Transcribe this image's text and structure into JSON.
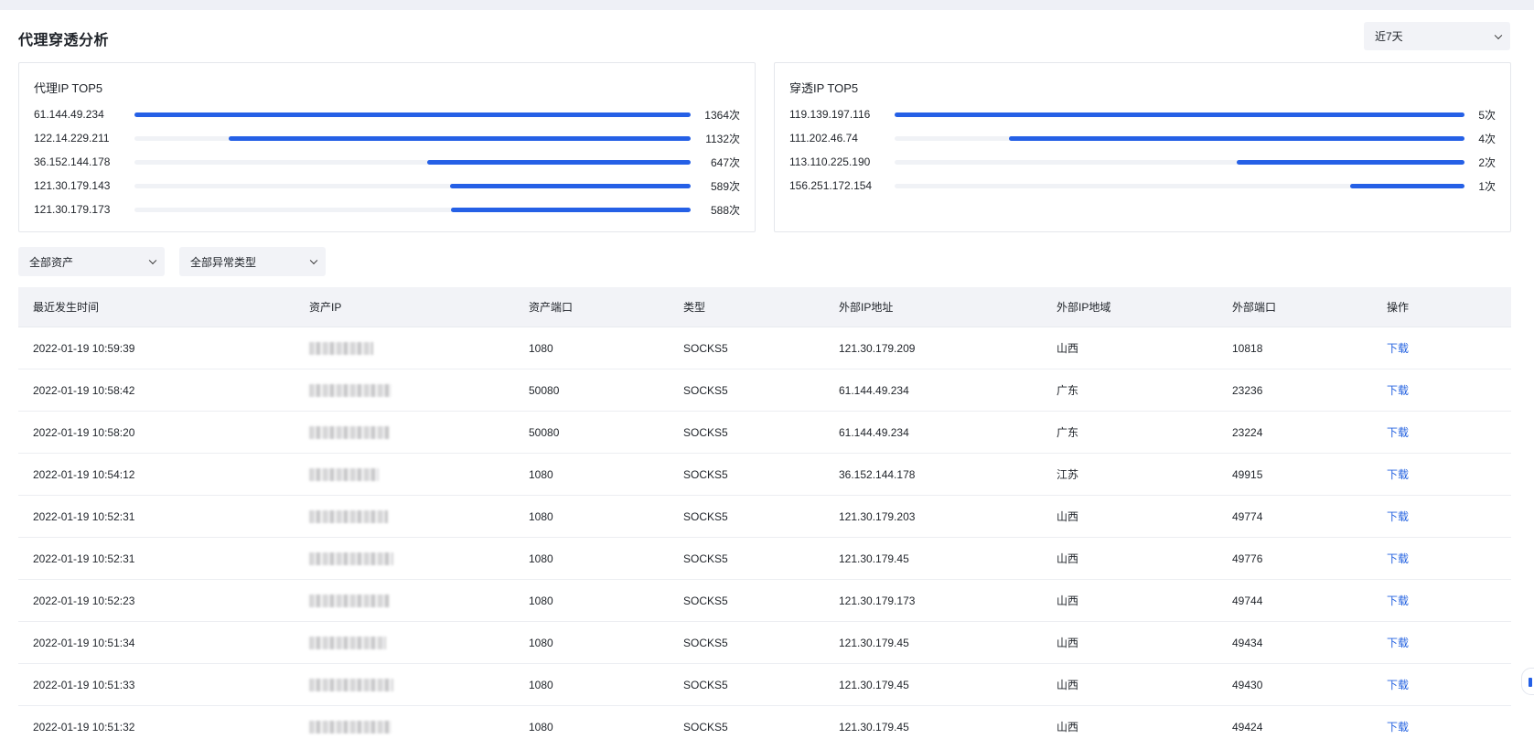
{
  "page": {
    "title": "代理穿透分析"
  },
  "range_select": {
    "value": "近7天",
    "icon": "chevron-down-icon"
  },
  "proxy_top5": {
    "title": "代理IP TOP5",
    "rows": [
      {
        "ip": "61.144.49.234",
        "count": "1364次",
        "ratio": 1.0
      },
      {
        "ip": "122.14.229.211",
        "count": "1132次",
        "ratio": 0.83
      },
      {
        "ip": "36.152.144.178",
        "count": "647次",
        "ratio": 0.474
      },
      {
        "ip": "121.30.179.143",
        "count": "589次",
        "ratio": 0.432
      },
      {
        "ip": "121.30.179.173",
        "count": "588次",
        "ratio": 0.431
      }
    ]
  },
  "penetration_top5": {
    "title": "穿透IP TOP5",
    "rows": [
      {
        "ip": "119.139.197.116",
        "count": "5次",
        "ratio": 1.0
      },
      {
        "ip": "111.202.46.74",
        "count": "4次",
        "ratio": 0.8
      },
      {
        "ip": "113.110.225.190",
        "count": "2次",
        "ratio": 0.4
      },
      {
        "ip": "156.251.172.154",
        "count": "1次",
        "ratio": 0.2
      }
    ]
  },
  "filters": {
    "asset": {
      "value": "全部资产"
    },
    "anomaly_type": {
      "value": "全部异常类型"
    }
  },
  "table": {
    "headers": [
      "最近发生时间",
      "资产IP",
      "资产端口",
      "类型",
      "外部IP地址",
      "外部IP地域",
      "外部端口",
      "操作"
    ],
    "rows": [
      {
        "time": "2022-01-19 10:59:39",
        "port": "1080",
        "type": "SOCKS5",
        "ext_ip": "121.30.179.209",
        "region": "山西",
        "ext_port": "10818",
        "action": "下载"
      },
      {
        "time": "2022-01-19 10:58:42",
        "port": "50080",
        "type": "SOCKS5",
        "ext_ip": "61.144.49.234",
        "region": "广东",
        "ext_port": "23236",
        "action": "下载"
      },
      {
        "time": "2022-01-19 10:58:20",
        "port": "50080",
        "type": "SOCKS5",
        "ext_ip": "61.144.49.234",
        "region": "广东",
        "ext_port": "23224",
        "action": "下载"
      },
      {
        "time": "2022-01-19 10:54:12",
        "port": "1080",
        "type": "SOCKS5",
        "ext_ip": "36.152.144.178",
        "region": "江苏",
        "ext_port": "49915",
        "action": "下载"
      },
      {
        "time": "2022-01-19 10:52:31",
        "port": "1080",
        "type": "SOCKS5",
        "ext_ip": "121.30.179.203",
        "region": "山西",
        "ext_port": "49774",
        "action": "下载"
      },
      {
        "time": "2022-01-19 10:52:31",
        "port": "1080",
        "type": "SOCKS5",
        "ext_ip": "121.30.179.45",
        "region": "山西",
        "ext_port": "49776",
        "action": "下载"
      },
      {
        "time": "2022-01-19 10:52:23",
        "port": "1080",
        "type": "SOCKS5",
        "ext_ip": "121.30.179.173",
        "region": "山西",
        "ext_port": "49744",
        "action": "下载"
      },
      {
        "time": "2022-01-19 10:51:34",
        "port": "1080",
        "type": "SOCKS5",
        "ext_ip": "121.30.179.45",
        "region": "山西",
        "ext_port": "49434",
        "action": "下载"
      },
      {
        "time": "2022-01-19 10:51:33",
        "port": "1080",
        "type": "SOCKS5",
        "ext_ip": "121.30.179.45",
        "region": "山西",
        "ext_port": "49430",
        "action": "下载"
      },
      {
        "time": "2022-01-19 10:51:32",
        "port": "1080",
        "type": "SOCKS5",
        "ext_ip": "121.30.179.45",
        "region": "山西",
        "ext_port": "49424",
        "action": "下载"
      }
    ]
  },
  "colors": {
    "accent": "#2560e6",
    "link": "#2563e0",
    "header_bg": "#f2f3f7"
  }
}
